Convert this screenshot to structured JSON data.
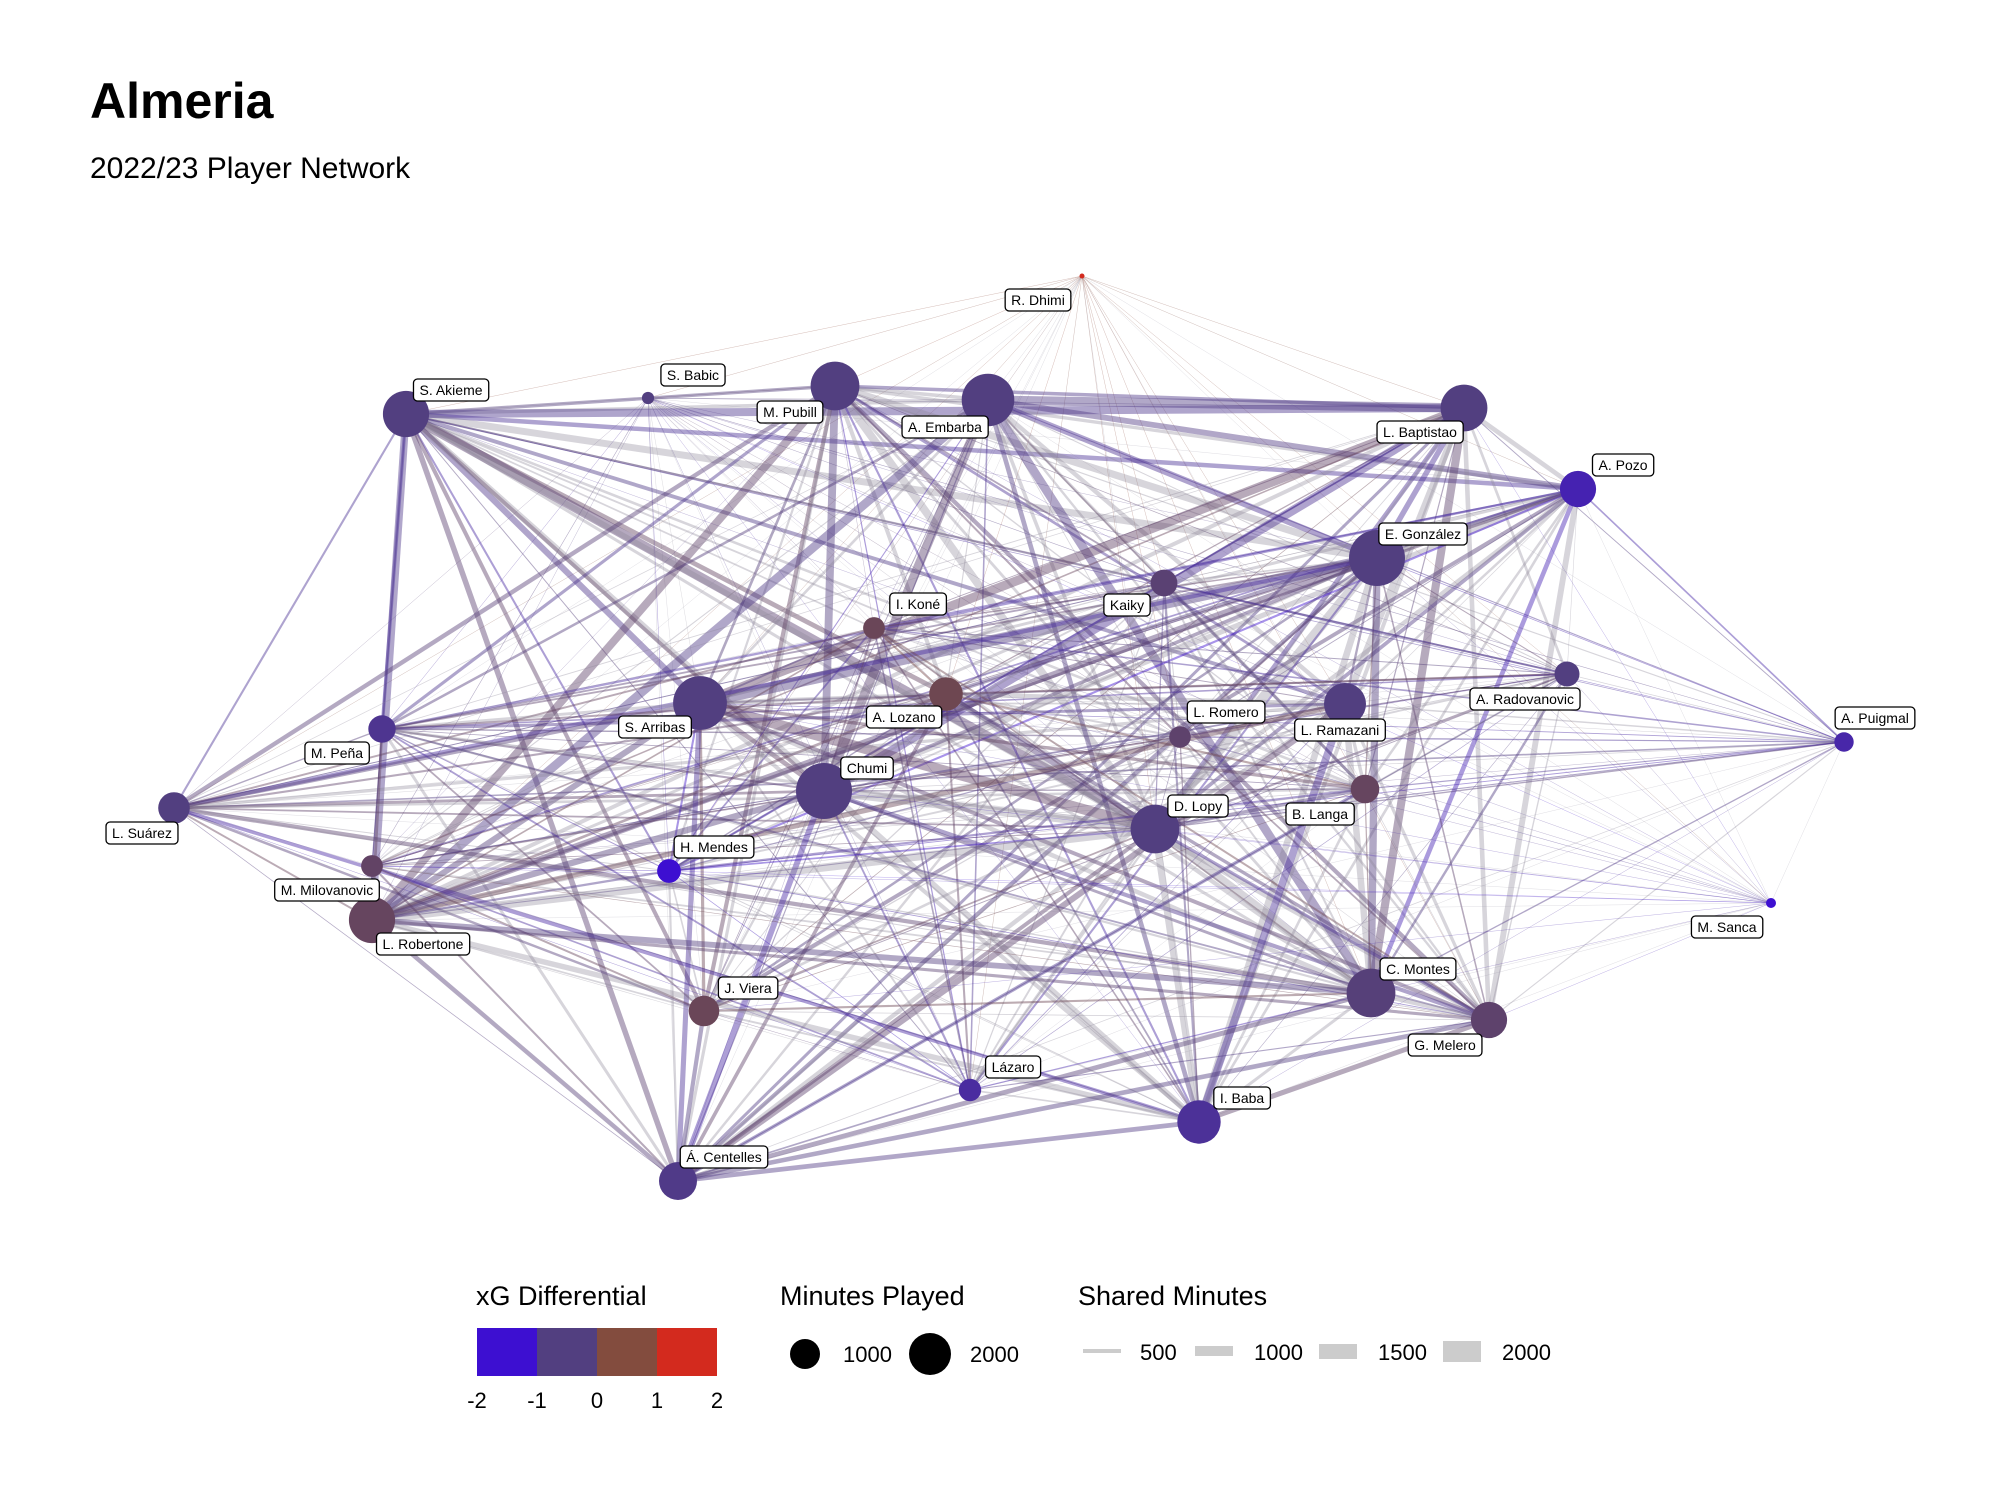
{
  "title": "Almeria",
  "subtitle": "2022/23 Player Network",
  "colors": {
    "xg_neg2": "#3d0fd1",
    "xg_neg1": "#523f80",
    "xg_0": "#7a4a3d",
    "xg_1": "#8a4a3a",
    "xg_2": "#d32a1e",
    "edge_neutral": "#8c8898",
    "edge_blue": "#6a4bd0"
  },
  "legend": {
    "xg": {
      "title": "xG Differential",
      "colors": [
        "#3d0fd1",
        "#523f80",
        "#834c3e",
        "#d32a1e"
      ],
      "ticks": [
        "-2",
        "-1",
        "0",
        "1",
        "2"
      ]
    },
    "minutes": {
      "title": "Minutes Played",
      "items": [
        {
          "label": "1000",
          "value": 1000
        },
        {
          "label": "2000",
          "value": 2000
        }
      ]
    },
    "shared": {
      "title": "Shared Minutes",
      "items": [
        {
          "label": "500",
          "value": 500
        },
        {
          "label": "1000",
          "value": 1000
        },
        {
          "label": "1500",
          "value": 1500
        },
        {
          "label": "2000",
          "value": 2000
        }
      ]
    }
  },
  "chart_data": {
    "type": "network",
    "title": "Almeria",
    "subtitle": "2022/23 Player Network",
    "nodes": [
      {
        "id": "R. Dhimi",
        "minutes": 20,
        "xg_diff": 2.0
      },
      {
        "id": "S. Babic",
        "minutes": 120,
        "xg_diff": -1.0
      },
      {
        "id": "S. Akieme",
        "minutes": 1700,
        "xg_diff": -1.0
      },
      {
        "id": "M. Pubill",
        "minutes": 1900,
        "xg_diff": -1.0
      },
      {
        "id": "A. Embarba",
        "minutes": 2200,
        "xg_diff": -1.0
      },
      {
        "id": "L. Baptistao",
        "minutes": 1750,
        "xg_diff": -1.0
      },
      {
        "id": "A. Pozo",
        "minutes": 1050,
        "xg_diff": -1.6
      },
      {
        "id": "E. González",
        "minutes": 2500,
        "xg_diff": -1.0
      },
      {
        "id": "I. Koné",
        "minutes": 380,
        "xg_diff": -0.4
      },
      {
        "id": "Kaiky",
        "minutes": 570,
        "xg_diff": -0.8
      },
      {
        "id": "A. Radovanovic",
        "minutes": 500,
        "xg_diff": -1.0
      },
      {
        "id": "A. Puigmal",
        "minutes": 300,
        "xg_diff": -1.5
      },
      {
        "id": "S. Arribas",
        "minutes": 2300,
        "xg_diff": -1.0
      },
      {
        "id": "A. Lozano",
        "minutes": 900,
        "xg_diff": -0.3
      },
      {
        "id": "L. Romero",
        "minutes": 370,
        "xg_diff": -0.7
      },
      {
        "id": "L. Ramazani",
        "minutes": 1400,
        "xg_diff": -1.0
      },
      {
        "id": "M. Peña",
        "minutes": 600,
        "xg_diff": -1.2
      },
      {
        "id": "L. Suárez",
        "minutes": 800,
        "xg_diff": -1.0
      },
      {
        "id": "Chumi",
        "minutes": 2500,
        "xg_diff": -1.0
      },
      {
        "id": "D. Lopy",
        "minutes": 1900,
        "xg_diff": -1.0
      },
      {
        "id": "B. Langa",
        "minutes": 650,
        "xg_diff": -0.5
      },
      {
        "id": "H. Mendes",
        "minutes": 450,
        "xg_diff": -2.0
      },
      {
        "id": "M. Milovanovic",
        "minutes": 380,
        "xg_diff": -0.6
      },
      {
        "id": "L. Robertone",
        "minutes": 1700,
        "xg_diff": -0.5
      },
      {
        "id": "M. Sanca",
        "minutes": 80,
        "xg_diff": -2.0
      },
      {
        "id": "J. Viera",
        "minutes": 750,
        "xg_diff": -0.4
      },
      {
        "id": "C. Montes",
        "minutes": 1900,
        "xg_diff": -0.9
      },
      {
        "id": "G. Melero",
        "minutes": 1050,
        "xg_diff": -0.7
      },
      {
        "id": "Lázaro",
        "minutes": 400,
        "xg_diff": -1.4
      },
      {
        "id": "I. Baba",
        "minutes": 1500,
        "xg_diff": -1.3
      },
      {
        "id": "Á. Centelles",
        "minutes": 1150,
        "xg_diff": -1.1
      }
    ],
    "edge_encoding": {
      "width": "Shared Minutes",
      "color": "xG Differential"
    }
  }
}
